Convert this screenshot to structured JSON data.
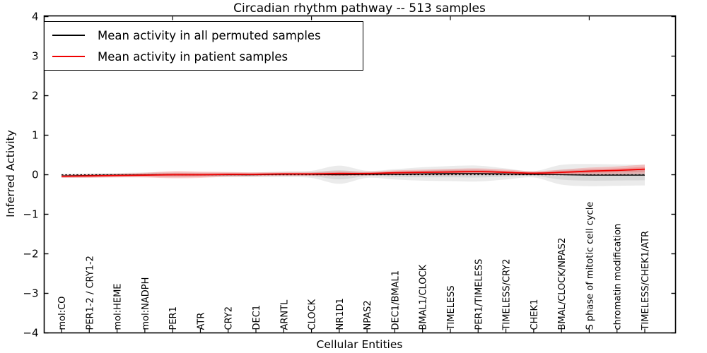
{
  "chart_data": {
    "type": "line",
    "title": "Circadian rhythm pathway -- 513 samples",
    "xlabel": "Cellular Entities",
    "ylabel": "Inferred Activity",
    "ylim": [
      -4,
      4
    ],
    "yticks": [
      -4,
      -3,
      -2,
      -1,
      0,
      1,
      2,
      3,
      4
    ],
    "top_axis_ticks_at_category_numbers": [
      5,
      10,
      15,
      20
    ],
    "grid": false,
    "legend_position": "upper left",
    "zero_line": {
      "present": true,
      "style": "dotted",
      "color": "#000000",
      "y": 0
    },
    "categories": [
      "mol:CO",
      "PER1-2 / CRY1-2",
      "mol:HEME",
      "mol:NADPH",
      "PER1",
      "ATR",
      "CRY2",
      "DEC1",
      "ARNTL",
      "CLOCK",
      "NR1D1",
      "NPAS2",
      "DEC1/BMAL1",
      "BMAL1/CLOCK",
      "TIMELESS",
      "PER1/TIMELESS",
      "TIMELESS/CRY2",
      "CHEK1",
      "BMAL/CLOCK/NPAS2",
      "S phase of mitotic cell cycle",
      "chromatin modification",
      "TIMELESS/CHEK1/ATR"
    ],
    "series": [
      {
        "name": "Mean activity in all permuted samples",
        "color": "#000000",
        "band_color": "#000000",
        "band_opacity": 0.08,
        "values": [
          -0.03,
          -0.02,
          -0.01,
          0,
          0,
          0,
          0,
          0,
          0.01,
          0.01,
          0,
          0.01,
          0.01,
          0.02,
          0.03,
          0.03,
          0.02,
          0.01,
          0,
          -0.01,
          -0.01,
          -0.01
        ],
        "band_halfwidth": [
          0.05,
          0.05,
          0.05,
          0.06,
          0.07,
          0.06,
          0.06,
          0.06,
          0.07,
          0.09,
          0.23,
          0.09,
          0.13,
          0.17,
          0.19,
          0.2,
          0.14,
          0.08,
          0.25,
          0.28,
          0.27,
          0.26
        ]
      },
      {
        "name": "Mean activity in patient samples",
        "color": "#f00000",
        "band_color": "#ff0000",
        "band_opacity": 0.18,
        "values": [
          -0.04,
          -0.03,
          -0.02,
          -0.01,
          0,
          0,
          0.01,
          0.01,
          0.02,
          0.02,
          0.03,
          0.03,
          0.05,
          0.06,
          0.07,
          0.08,
          0.06,
          0.04,
          0.06,
          0.09,
          0.11,
          0.14
        ],
        "band_halfwidth": [
          0.04,
          0.05,
          0.05,
          0.06,
          0.09,
          0.08,
          0.06,
          0.05,
          0.05,
          0.05,
          0.06,
          0.05,
          0.06,
          0.07,
          0.08,
          0.08,
          0.07,
          0.05,
          0.07,
          0.09,
          0.1,
          0.12
        ]
      }
    ]
  },
  "colors": {
    "frame": "#000000",
    "background": "#ffffff",
    "tick_label": "#000000"
  }
}
